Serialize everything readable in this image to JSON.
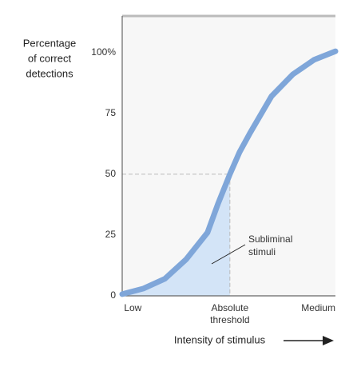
{
  "chart_data": {
    "type": "line",
    "ylabel": [
      "Percentage",
      "of correct",
      "detections"
    ],
    "xlabel": "Intensity of stimulus",
    "annotation": [
      "Subliminal",
      "stimuli"
    ],
    "xlim": [
      0,
      100
    ],
    "ylim": [
      0,
      115
    ],
    "xticks": [
      {
        "value": 5,
        "label": "Low"
      },
      {
        "value": 50.5,
        "label": "Absolute threshold"
      },
      {
        "value": 92,
        "label": "Medium"
      }
    ],
    "yticks": [
      0,
      25,
      50,
      75,
      {
        "value": 100,
        "label": "100%"
      }
    ],
    "threshold": {
      "x": 50.5,
      "y": 50
    },
    "grid": false,
    "series": [
      {
        "color": "#7fa6d9",
        "fill": "#d3e4f7",
        "x": [
          0,
          10,
          20,
          30,
          40,
          45,
          50.5,
          55,
          60,
          70,
          80,
          90,
          100
        ],
        "values": [
          0.7,
          3,
          7,
          15,
          26,
          38,
          50,
          59,
          67,
          82,
          91,
          97,
          100.5
        ]
      }
    ]
  }
}
